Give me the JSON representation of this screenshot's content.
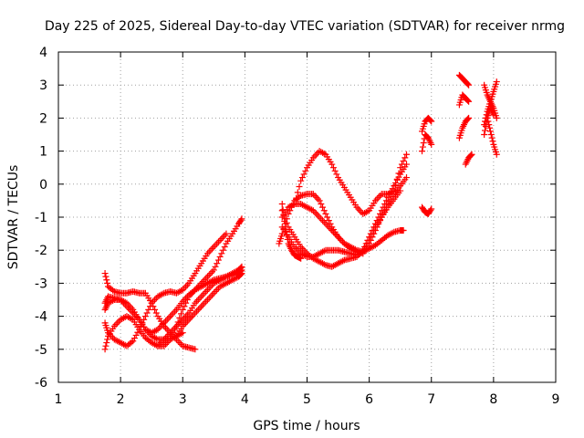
{
  "chart_data": {
    "type": "scatter",
    "title": "Day 225 of 2025, Sidereal Day-to-day VTEC variation (SDTVAR) for receiver nrmg",
    "xlabel": "GPS time / hours",
    "ylabel": "SDTVAR / TECUs",
    "xlim": [
      1,
      9
    ],
    "ylim": [
      -6,
      4
    ],
    "xticks": [
      "1",
      "2",
      "3",
      "4",
      "5",
      "6",
      "7",
      "8",
      "9"
    ],
    "yticks": [
      "-6",
      "-5",
      "-4",
      "-3",
      "-2",
      "-1",
      "0",
      "1",
      "2",
      "3",
      "4"
    ],
    "grid": true,
    "legend": "none",
    "marker": "plus",
    "color": "#ff0000",
    "series": [
      {
        "x": [
          1.75,
          1.8,
          1.9,
          2.0,
          2.1,
          2.2,
          2.3,
          2.4,
          2.5,
          2.6,
          2.7,
          2.8,
          2.9,
          3.0,
          3.1,
          3.2
        ],
        "y": [
          -2.7,
          -3.1,
          -3.25,
          -3.3,
          -3.3,
          -3.25,
          -3.3,
          -3.3,
          -3.6,
          -4.0,
          -4.3,
          -4.5,
          -4.7,
          -4.9,
          -4.95,
          -5.0
        ]
      },
      {
        "x": [
          1.75,
          1.8,
          1.9,
          2.0,
          2.1,
          2.2,
          2.3,
          2.4,
          2.5,
          2.6,
          2.7,
          2.8,
          2.9,
          3.0
        ],
        "y": [
          -3.6,
          -3.4,
          -3.45,
          -3.5,
          -3.7,
          -3.9,
          -4.1,
          -4.4,
          -4.6,
          -4.7,
          -4.7,
          -4.7,
          -4.6,
          -4.5
        ]
      },
      {
        "x": [
          1.75,
          1.8,
          1.9,
          2.0,
          2.1,
          2.2,
          2.3,
          2.4,
          2.5,
          2.6,
          2.7,
          2.8,
          2.9,
          3.0,
          3.1,
          3.2,
          3.3,
          3.4,
          3.5,
          3.6,
          3.7,
          3.8,
          3.9,
          3.95
        ],
        "y": [
          -5.0,
          -4.6,
          -4.3,
          -4.1,
          -4.0,
          -4.1,
          -4.4,
          -4.65,
          -4.8,
          -4.9,
          -4.9,
          -4.7,
          -4.3,
          -3.8,
          -3.4,
          -3.2,
          -3.0,
          -2.8,
          -2.6,
          -2.2,
          -1.8,
          -1.5,
          -1.2,
          -1.05
        ]
      },
      {
        "x": [
          1.75,
          1.8,
          1.9,
          2.0,
          2.1,
          2.2,
          2.3,
          2.4,
          2.5,
          2.6,
          2.7,
          2.8,
          2.9,
          3.0,
          3.1,
          3.2,
          3.3,
          3.4,
          3.5,
          3.6,
          3.7
        ],
        "y": [
          -4.2,
          -4.5,
          -4.7,
          -4.8,
          -4.9,
          -4.75,
          -4.4,
          -4.0,
          -3.6,
          -3.4,
          -3.3,
          -3.25,
          -3.3,
          -3.2,
          -3.0,
          -2.7,
          -2.4,
          -2.1,
          -1.9,
          -1.7,
          -1.5
        ]
      },
      {
        "x": [
          1.75,
          1.8,
          1.9,
          2.0,
          2.1,
          2.2,
          2.3,
          2.4,
          2.5,
          2.6,
          2.7,
          2.8,
          2.9,
          3.0,
          3.1,
          3.2,
          3.3,
          3.4,
          3.5,
          3.6,
          3.7,
          3.8,
          3.9,
          3.95
        ],
        "y": [
          -3.8,
          -3.6,
          -3.5,
          -3.5,
          -3.6,
          -3.8,
          -4.1,
          -4.4,
          -4.5,
          -4.4,
          -4.2,
          -4.0,
          -3.8,
          -3.55,
          -3.35,
          -3.2,
          -3.1,
          -3.0,
          -2.9,
          -2.85,
          -2.8,
          -2.75,
          -2.7,
          -2.6
        ]
      },
      {
        "x": [
          2.6,
          2.7,
          2.8,
          2.9,
          3.0,
          3.1,
          3.2,
          3.3,
          3.4,
          3.5,
          3.6,
          3.7,
          3.8,
          3.9,
          3.95
        ],
        "y": [
          -4.9,
          -4.7,
          -4.5,
          -4.3,
          -4.1,
          -3.9,
          -3.6,
          -3.4,
          -3.2,
          -3.0,
          -2.9,
          -2.8,
          -2.7,
          -2.6,
          -2.5
        ]
      },
      {
        "x": [
          2.9,
          3.0,
          3.1,
          3.2,
          3.3,
          3.4,
          3.5,
          3.6,
          3.7,
          3.8,
          3.9,
          3.95
        ],
        "y": [
          -4.6,
          -4.3,
          -4.1,
          -3.9,
          -3.7,
          -3.5,
          -3.3,
          -3.1,
          -3.0,
          -2.9,
          -2.8,
          -2.7
        ]
      },
      {
        "x": [
          4.55,
          4.6,
          4.7,
          4.8,
          4.9,
          5.0,
          5.1,
          5.2,
          5.3,
          5.4,
          5.5,
          5.6,
          5.7,
          5.8,
          5.9,
          6.0,
          6.1,
          6.2,
          6.3,
          6.4,
          6.5,
          6.55
        ],
        "y": [
          -1.8,
          -1.5,
          -0.9,
          -0.5,
          -0.35,
          -0.3,
          -0.3,
          -0.5,
          -0.9,
          -1.3,
          -1.6,
          -1.8,
          -1.9,
          -2.0,
          -2.05,
          -1.95,
          -1.85,
          -1.7,
          -1.55,
          -1.45,
          -1.4,
          -1.4
        ]
      },
      {
        "x": [
          4.6,
          4.7,
          4.8,
          4.9,
          5.0,
          5.1,
          5.2,
          5.3,
          5.4,
          5.5,
          5.6,
          5.7,
          5.8,
          5.9,
          6.0,
          6.1,
          6.2,
          6.3,
          6.4,
          6.5,
          6.6
        ],
        "y": [
          -1.0,
          -0.7,
          -0.6,
          -0.6,
          -0.7,
          -0.8,
          -1.0,
          -1.2,
          -1.4,
          -1.6,
          -1.8,
          -1.95,
          -2.05,
          -2.1,
          -1.8,
          -1.4,
          -1.0,
          -0.6,
          -0.3,
          -0.05,
          0.2
        ]
      },
      {
        "x": [
          4.6,
          4.7,
          4.8,
          4.9,
          5.0,
          5.1,
          5.2,
          5.3,
          5.4,
          5.5,
          5.6,
          5.7,
          5.8,
          5.9,
          6.0,
          6.1,
          6.2,
          6.3,
          6.4,
          6.5
        ],
        "y": [
          -1.3,
          -1.6,
          -1.9,
          -2.1,
          -2.2,
          -2.2,
          -2.1,
          -2.0,
          -2.0,
          -2.0,
          -2.05,
          -2.1,
          -2.15,
          -2.05,
          -1.7,
          -1.3,
          -1.0,
          -0.7,
          -0.45,
          -0.2
        ]
      },
      {
        "x": [
          4.6,
          4.65,
          4.7,
          4.75,
          4.8,
          4.85,
          4.9
        ],
        "y": [
          -0.6,
          -1.3,
          -1.8,
          -2.0,
          -2.15,
          -2.2,
          -2.25
        ]
      },
      {
        "x": [
          4.6,
          4.7,
          4.8,
          4.9,
          5.0,
          5.1,
          5.2,
          5.3,
          5.4,
          5.5,
          5.6,
          5.7,
          5.8,
          5.9,
          6.0,
          6.1,
          6.2,
          6.3,
          6.4,
          6.5,
          6.6
        ],
        "y": [
          -0.8,
          -1.3,
          -1.6,
          -1.9,
          -2.1,
          -2.25,
          -2.35,
          -2.45,
          -2.5,
          -2.4,
          -2.3,
          -2.25,
          -2.2,
          -2.0,
          -1.6,
          -1.2,
          -0.8,
          -0.4,
          -0.05,
          0.3,
          0.6
        ]
      },
      {
        "x": [
          4.8,
          4.9,
          5.0,
          5.1,
          5.2,
          5.3,
          5.4,
          5.5,
          5.6,
          5.7,
          5.8,
          5.9,
          6.0,
          6.1,
          6.2,
          6.3,
          6.4,
          6.5,
          6.6
        ],
        "y": [
          -0.6,
          0.1,
          0.5,
          0.8,
          1.0,
          0.9,
          0.6,
          0.2,
          -0.1,
          -0.4,
          -0.7,
          -0.9,
          -0.8,
          -0.5,
          -0.3,
          -0.3,
          -0.2,
          0.5,
          0.9
        ]
      },
      {
        "x": [
          6.85,
          6.9,
          6.95,
          7.0
        ],
        "y": [
          -0.7,
          -0.85,
          -0.9,
          -0.75
        ]
      },
      {
        "x": [
          6.85,
          6.9,
          6.95,
          7.0
        ],
        "y": [
          1.0,
          1.5,
          1.4,
          1.2
        ]
      },
      {
        "x": [
          6.85,
          6.9,
          6.95,
          7.0
        ],
        "y": [
          1.6,
          1.9,
          2.0,
          1.9
        ]
      },
      {
        "x": [
          7.45,
          7.5,
          7.55,
          7.6
        ],
        "y": [
          3.3,
          3.2,
          3.1,
          3.0
        ]
      },
      {
        "x": [
          7.45,
          7.5,
          7.55,
          7.6
        ],
        "y": [
          2.4,
          2.7,
          2.6,
          2.5
        ]
      },
      {
        "x": [
          7.45,
          7.5,
          7.55,
          7.6
        ],
        "y": [
          1.4,
          1.7,
          1.9,
          2.0
        ]
      },
      {
        "x": [
          7.55,
          7.6,
          7.65
        ],
        "y": [
          0.6,
          0.8,
          0.9
        ]
      },
      {
        "x": [
          7.85,
          7.9,
          7.95,
          8.0,
          8.05
        ],
        "y": [
          3.0,
          2.7,
          2.5,
          2.3,
          2.0
        ]
      },
      {
        "x": [
          7.85,
          7.9,
          7.95,
          8.0,
          8.05
        ],
        "y": [
          1.8,
          2.2,
          2.5,
          2.8,
          3.1
        ]
      },
      {
        "x": [
          7.9,
          7.95,
          8.0,
          8.05
        ],
        "y": [
          2.0,
          1.6,
          1.2,
          0.9
        ]
      },
      {
        "x": [
          7.85,
          7.9,
          7.95,
          8.0
        ],
        "y": [
          1.5,
          2.0,
          2.3,
          2.1
        ]
      }
    ]
  }
}
